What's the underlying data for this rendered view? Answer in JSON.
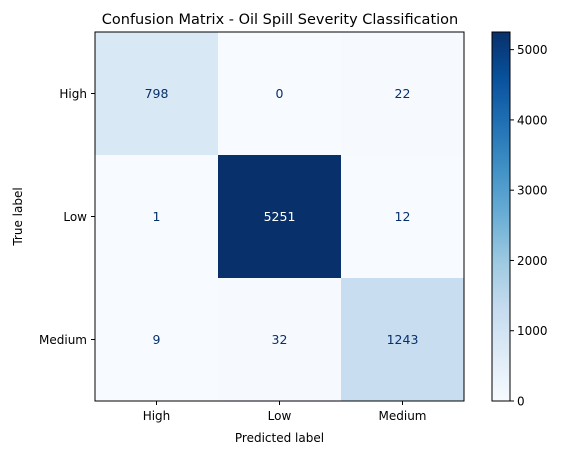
{
  "chart_data": {
    "type": "heatmap",
    "title": "Confusion Matrix - Oil Spill Severity Classification",
    "xlabel": "Predicted label",
    "ylabel": "True label",
    "x_categories": [
      "High",
      "Low",
      "Medium"
    ],
    "y_categories": [
      "High",
      "Low",
      "Medium"
    ],
    "values": [
      [
        798,
        0,
        22
      ],
      [
        1,
        5251,
        12
      ],
      [
        9,
        32,
        1243
      ]
    ],
    "colormap": "Blues",
    "color_range": [
      0,
      5251
    ],
    "colorbar_ticks": [
      "0",
      "1000",
      "2000",
      "3000",
      "4000",
      "5000"
    ],
    "colors": {
      "text_light": "#ffffff",
      "text_dark": "#08306b"
    }
  }
}
